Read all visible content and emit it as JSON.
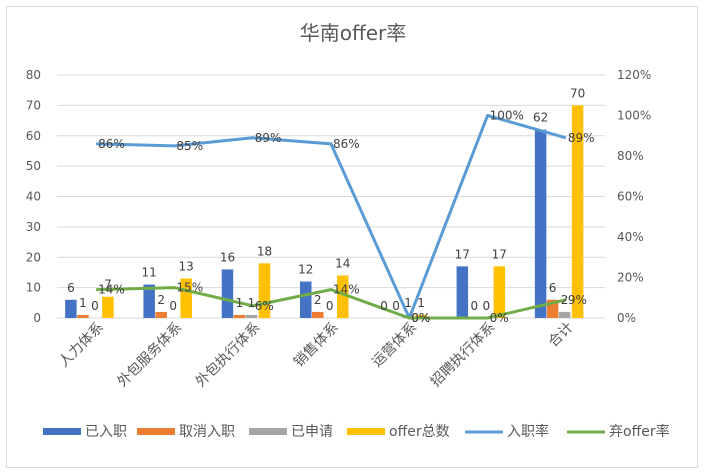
{
  "chart_data": {
    "type": "bar",
    "title": "华南offer率",
    "categories": [
      "人力体系",
      "外包服务体系",
      "外包执行体系",
      "销售体系",
      "运营体系",
      "招聘执行体系",
      "合计"
    ],
    "y_left": {
      "ylim": [
        0,
        80
      ],
      "ticks": [
        "0",
        "10",
        "20",
        "30",
        "40",
        "50",
        "60",
        "70",
        "80"
      ]
    },
    "y_right": {
      "ylim": [
        0,
        120
      ],
      "ticks": [
        "0%",
        "20%",
        "40%",
        "60%",
        "80%",
        "100%",
        "120%"
      ]
    },
    "bar_series": [
      {
        "name": "已入职",
        "color": "#4472C4",
        "values": [
          6,
          11,
          16,
          12,
          0,
          17,
          62
        ],
        "labels": [
          "6",
          "11",
          "16",
          "12",
          "0",
          "17",
          "62"
        ]
      },
      {
        "name": "取消入职",
        "color": "#ED7D31",
        "values": [
          1,
          2,
          1,
          2,
          0,
          0,
          6
        ],
        "labels": [
          "1",
          "2",
          "1",
          "2",
          "0",
          "0",
          "6"
        ]
      },
      {
        "name": "已申请",
        "color": "#A5A5A5",
        "values": [
          0,
          0,
          1,
          0,
          1,
          0,
          2
        ],
        "labels": [
          "0",
          "0",
          "1",
          "0",
          "1",
          "0",
          "2"
        ]
      },
      {
        "name": "offer总数",
        "color": "#FFC000",
        "values": [
          7,
          13,
          18,
          14,
          1,
          17,
          70
        ],
        "labels": [
          "7",
          "13",
          "18",
          "14",
          "1",
          "17",
          "70"
        ]
      }
    ],
    "line_series": [
      {
        "name": "入职率",
        "color": "#5B9BD5",
        "axis": "right",
        "values": [
          86,
          85,
          89,
          86,
          0,
          100,
          89
        ],
        "labels": [
          "86%",
          "85%",
          "89%",
          "86%",
          "0%",
          "100%",
          "89%"
        ]
      },
      {
        "name": "弃offer率",
        "color": "#70AD47",
        "axis": "right",
        "values": [
          14,
          15,
          6,
          14,
          0,
          0,
          9
        ],
        "labels": [
          "14%",
          "15%",
          "6%",
          "14%",
          "0%",
          "0%",
          "9%"
        ]
      }
    ],
    "legend": [
      "已入职",
      "取消入职",
      "已申请",
      "offer总数",
      "入职率",
      "弃offer率"
    ],
    "legend_position": "bottom"
  }
}
